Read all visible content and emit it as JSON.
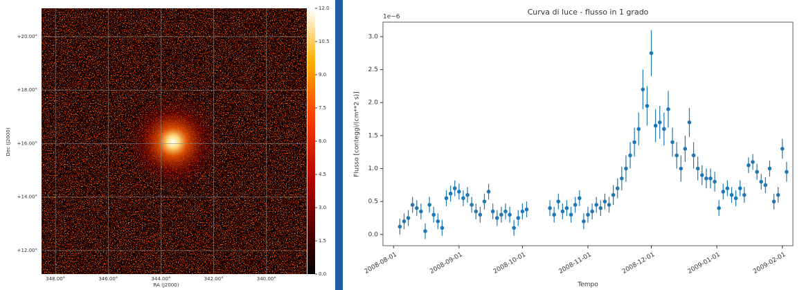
{
  "chart_data": [
    {
      "type": "image",
      "xlabel": "RA (J2000)",
      "ylabel": "Dec (J2000)",
      "xlim": [
        348.53,
        338.47
      ],
      "ylim": [
        11.12,
        21.06
      ],
      "xticks": [
        {
          "value": 348,
          "label": "348.00°"
        },
        {
          "value": 346,
          "label": "346.00°"
        },
        {
          "value": 344,
          "label": "344.00°"
        },
        {
          "value": 342,
          "label": "342.00°"
        },
        {
          "value": 340,
          "label": "340.00°"
        }
      ],
      "yticks": [
        {
          "value": 12,
          "label": "+12.00°"
        },
        {
          "value": 14,
          "label": "+14.00°"
        },
        {
          "value": 16,
          "label": "+16.00°"
        },
        {
          "value": 18,
          "label": "+18.00°"
        },
        {
          "value": 20,
          "label": "+20.00°"
        }
      ],
      "grid": true,
      "colorbar": {
        "lim": [
          0,
          12
        ],
        "ticks": [
          {
            "value": 0,
            "label": "0.0"
          },
          {
            "value": 1.5,
            "label": "1.5"
          },
          {
            "value": 3,
            "label": "3.0"
          },
          {
            "value": 4.5,
            "label": "4.5"
          },
          {
            "value": 6,
            "label": "6.0"
          },
          {
            "value": 7.5,
            "label": "7.5"
          },
          {
            "value": 9,
            "label": "9.0"
          },
          {
            "value": 10.5,
            "label": "10.5"
          },
          {
            "value": 12,
            "label": "12.0"
          }
        ]
      }
    },
    {
      "type": "errorbar",
      "title": "Curva di luce - flusso in 1 grado",
      "offset_text": "1e−6",
      "xlabel": "Tempo",
      "ylabel": "Flusso [conteggi/(cm**2 s)]",
      "color": "#1f77b4",
      "x": [
        "2008-08-04",
        "2008-08-06",
        "2008-08-08",
        "2008-08-10",
        "2008-08-12",
        "2008-08-14",
        "2008-08-16",
        "2008-08-18",
        "2008-08-20",
        "2008-08-22",
        "2008-08-24",
        "2008-08-26",
        "2008-08-28",
        "2008-08-30",
        "2008-09-01",
        "2008-09-03",
        "2008-09-05",
        "2008-09-07",
        "2008-09-09",
        "2008-09-11",
        "2008-09-13",
        "2008-09-15",
        "2008-09-17",
        "2008-09-19",
        "2008-09-21",
        "2008-09-23",
        "2008-09-25",
        "2008-09-27",
        "2008-09-29",
        "2008-10-01",
        "2008-10-03",
        "2008-10-14",
        "2008-10-16",
        "2008-10-18",
        "2008-10-20",
        "2008-10-22",
        "2008-10-24",
        "2008-10-26",
        "2008-10-28",
        "2008-10-30",
        "2008-11-01",
        "2008-11-03",
        "2008-11-05",
        "2008-11-07",
        "2008-11-09",
        "2008-11-11",
        "2008-11-13",
        "2008-11-15",
        "2008-11-17",
        "2008-11-19",
        "2008-11-21",
        "2008-11-23",
        "2008-11-25",
        "2008-11-27",
        "2008-11-29",
        "2008-12-01",
        "2008-12-03",
        "2008-12-05",
        "2008-12-07",
        "2008-12-09",
        "2008-12-11",
        "2008-12-13",
        "2008-12-15",
        "2008-12-17",
        "2008-12-19",
        "2008-12-21",
        "2008-12-23",
        "2008-12-25",
        "2008-12-27",
        "2008-12-29",
        "2008-12-31",
        "2009-01-02",
        "2009-01-04",
        "2009-01-06",
        "2009-01-08",
        "2009-01-10",
        "2009-01-12",
        "2009-01-14",
        "2009-01-16",
        "2009-01-18",
        "2009-01-20",
        "2009-01-22",
        "2009-01-24",
        "2009-01-26",
        "2009-01-28",
        "2009-01-30",
        "2009-02-01",
        "2009-02-03"
      ],
      "values": [
        0.12,
        0.2,
        0.25,
        0.45,
        0.4,
        0.35,
        0.05,
        0.45,
        0.3,
        0.2,
        0.1,
        0.55,
        0.62,
        0.7,
        0.65,
        0.55,
        0.6,
        0.45,
        0.35,
        0.3,
        0.5,
        0.65,
        0.35,
        0.25,
        0.3,
        0.35,
        0.3,
        0.1,
        0.25,
        0.35,
        0.38,
        0.4,
        0.3,
        0.5,
        0.35,
        0.4,
        0.3,
        0.45,
        0.55,
        0.2,
        0.3,
        0.35,
        0.45,
        0.4,
        0.5,
        0.45,
        0.6,
        0.7,
        0.85,
        1.0,
        1.2,
        1.4,
        1.6,
        2.2,
        1.95,
        2.75,
        1.65,
        1.7,
        1.6,
        1.9,
        1.4,
        1.2,
        1.0,
        1.3,
        1.7,
        1.2,
        1.0,
        0.9,
        0.85,
        0.85,
        0.8,
        0.4,
        0.65,
        0.7,
        0.6,
        0.55,
        0.7,
        0.6,
        1.05,
        1.1,
        0.95,
        0.8,
        0.75,
        1.0,
        0.5,
        0.6,
        1.3,
        0.95
      ],
      "errors": [
        0.12,
        0.12,
        0.12,
        0.12,
        0.12,
        0.12,
        0.12,
        0.12,
        0.12,
        0.12,
        0.12,
        0.12,
        0.12,
        0.12,
        0.12,
        0.12,
        0.12,
        0.12,
        0.12,
        0.12,
        0.12,
        0.12,
        0.12,
        0.12,
        0.12,
        0.12,
        0.12,
        0.12,
        0.12,
        0.12,
        0.12,
        0.12,
        0.12,
        0.12,
        0.12,
        0.12,
        0.12,
        0.12,
        0.12,
        0.12,
        0.12,
        0.12,
        0.12,
        0.12,
        0.12,
        0.12,
        0.15,
        0.15,
        0.18,
        0.2,
        0.2,
        0.22,
        0.25,
        0.3,
        0.3,
        0.35,
        0.25,
        0.25,
        0.25,
        0.28,
        0.22,
        0.2,
        0.2,
        0.2,
        0.22,
        0.2,
        0.18,
        0.15,
        0.15,
        0.15,
        0.15,
        0.12,
        0.12,
        0.12,
        0.12,
        0.12,
        0.12,
        0.12,
        0.12,
        0.12,
        0.12,
        0.12,
        0.12,
        0.12,
        0.12,
        0.12,
        0.15,
        0.15
      ],
      "xlim": [
        "2008-07-27",
        "2009-02-06"
      ],
      "xticks": [
        "2008-08-01",
        "2008-09-01",
        "2008-10-01",
        "2008-11-01",
        "2008-12-01",
        "2009-01-01",
        "2009-02-01"
      ],
      "ylim": [
        -0.17,
        3.22
      ],
      "yticks": [
        {
          "value": 0,
          "label": "0.0"
        },
        {
          "value": 0.5,
          "label": "0.5"
        },
        {
          "value": 1,
          "label": "1.0"
        },
        {
          "value": 1.5,
          "label": "1.5"
        },
        {
          "value": 2,
          "label": "2.0"
        },
        {
          "value": 2.5,
          "label": "2.5"
        },
        {
          "value": 3,
          "label": "3.0"
        }
      ]
    }
  ]
}
